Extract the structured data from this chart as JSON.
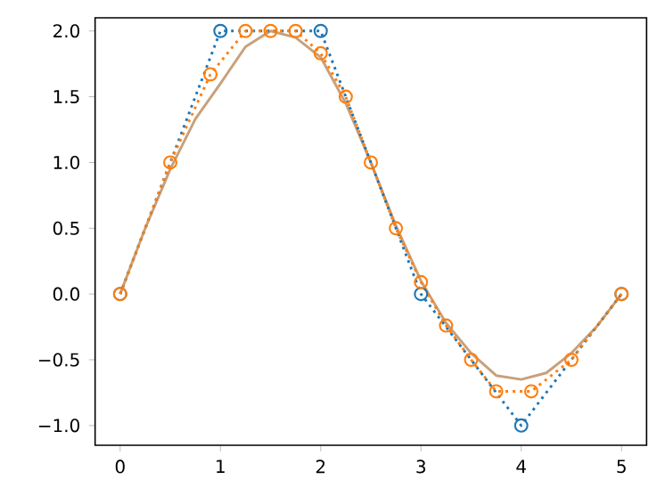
{
  "chart_data": {
    "type": "line",
    "xlim": [
      -0.25,
      5.25
    ],
    "ylim": [
      -1.15,
      2.1
    ],
    "xticks": [
      0,
      1,
      2,
      3,
      4,
      5
    ],
    "yticks": [
      {
        "value": -1.0,
        "label": "−1.0"
      },
      {
        "value": -0.5,
        "label": "−0.5"
      },
      {
        "value": 0.0,
        "label": "0.0"
      },
      {
        "value": 0.5,
        "label": "0.5"
      },
      {
        "value": 1.0,
        "label": "1.0"
      },
      {
        "value": 1.5,
        "label": "1.5"
      },
      {
        "value": 2.0,
        "label": "2.0"
      }
    ],
    "grid": false,
    "series": [
      {
        "color": "#c9a07a",
        "marker": "none",
        "line_style": "solid",
        "x": [
          0,
          0.25,
          0.5,
          0.75,
          1,
          1.25,
          1.5,
          1.75,
          2,
          2.25,
          2.5,
          2.75,
          3,
          3.25,
          3.5,
          3.75,
          4,
          4.25,
          4.5,
          4.75,
          5
        ],
        "values": [
          0,
          0.5,
          0.95,
          1.33,
          1.6,
          1.88,
          2.0,
          1.95,
          1.8,
          1.45,
          1.0,
          0.52,
          0.1,
          -0.22,
          -0.45,
          -0.62,
          -0.65,
          -0.6,
          -0.45,
          -0.25,
          0
        ]
      },
      {
        "color": "#1f77b4",
        "marker": "circle",
        "line_style": "dotted",
        "x": [
          0,
          1,
          2,
          3,
          4,
          5
        ],
        "values": [
          0,
          2,
          2,
          0,
          -1,
          0
        ]
      },
      {
        "color": "#ff7f0e",
        "marker": "circle",
        "line_style": "dotted",
        "x": [
          0,
          0.5,
          0.9,
          1.25,
          1.5,
          1.75,
          2,
          2.25,
          2.5,
          2.75,
          3,
          3.25,
          3.5,
          3.75,
          4.1,
          4.5,
          5
        ],
        "values": [
          0,
          1.0,
          1.67,
          2.0,
          2.0,
          2.0,
          1.83,
          1.5,
          1.0,
          0.5,
          0.09,
          -0.24,
          -0.5,
          -0.74,
          -0.74,
          -0.5,
          0
        ]
      }
    ]
  }
}
